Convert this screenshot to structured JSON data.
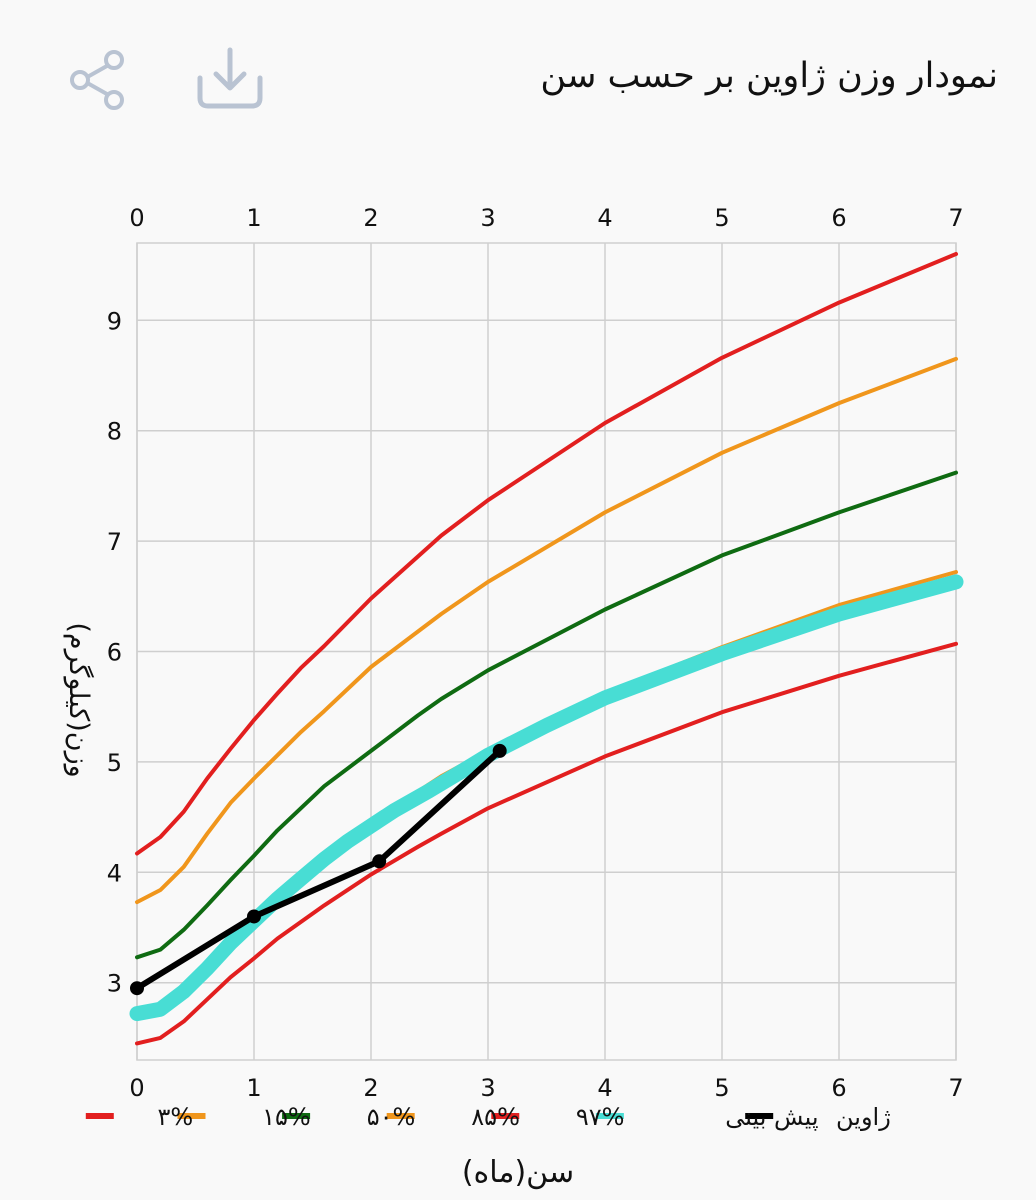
{
  "header": {
    "title": "نمودار وزن ژاوین بر حسب سن",
    "share_icon": "share-icon",
    "download_icon": "download-icon"
  },
  "colors": {
    "background": "#f9f9f9",
    "grid": "#cfcfcf",
    "axis_text": "#111111",
    "icon": "#b9c3d2"
  },
  "chart_data": {
    "type": "line",
    "xlabel": "سن(ماه)",
    "ylabel": "وزن(کیلوگرم)",
    "xlim": [
      0,
      7
    ],
    "ylim": [
      2.3,
      9.7
    ],
    "x_ticks": [
      "0",
      "1",
      "2",
      "3",
      "4",
      "5",
      "6",
      "7"
    ],
    "y_ticks": [
      "3",
      "4",
      "5",
      "6",
      "7",
      "8",
      "9"
    ],
    "x_tick_values": [
      0,
      1,
      2,
      3,
      4,
      5,
      6,
      7
    ],
    "y_tick_values": [
      3,
      4,
      5,
      6,
      7,
      8,
      9
    ],
    "grid": true,
    "x_axis_top_labels": true,
    "legend_position": "bottom",
    "x": [
      0,
      0.2,
      0.4,
      0.6,
      0.8,
      1.0,
      1.2,
      1.4,
      1.6,
      2.0,
      2.4,
      2.6,
      3.0,
      4.0,
      5.0,
      6.0,
      7.0
    ],
    "series": [
      {
        "name": "۳%",
        "color": "#e21f1f",
        "width": 4,
        "values": [
          2.45,
          2.5,
          2.65,
          2.85,
          3.05,
          3.22,
          3.4,
          3.55,
          3.7,
          3.98,
          4.23,
          4.35,
          4.58,
          5.05,
          5.45,
          5.78,
          6.07
        ]
      },
      {
        "name": "۱۵%",
        "color": "#f0961c",
        "width": 4,
        "values": [
          2.73,
          2.78,
          2.95,
          3.18,
          3.4,
          3.58,
          3.75,
          3.95,
          4.12,
          4.45,
          4.73,
          4.87,
          5.1,
          5.62,
          6.04,
          6.42,
          6.72
        ]
      },
      {
        "name": "۵۰%",
        "color": "#0f6b12",
        "width": 4,
        "values": [
          3.23,
          3.3,
          3.48,
          3.7,
          3.93,
          4.15,
          4.38,
          4.58,
          4.78,
          5.1,
          5.42,
          5.57,
          5.83,
          6.38,
          6.87,
          7.26,
          7.62
        ]
      },
      {
        "name": "۸۵%",
        "color": "#f0961c",
        "width": 4,
        "values": [
          3.73,
          3.84,
          4.05,
          4.35,
          4.63,
          4.85,
          5.06,
          5.27,
          5.46,
          5.86,
          6.18,
          6.34,
          6.63,
          7.26,
          7.8,
          8.25,
          8.65
        ]
      },
      {
        "name": "۹۷%",
        "color": "#e21f1f",
        "width": 4,
        "values": [
          4.17,
          4.32,
          4.55,
          4.85,
          5.12,
          5.38,
          5.62,
          5.85,
          6.05,
          6.48,
          6.86,
          7.05,
          7.37,
          8.07,
          8.66,
          9.16,
          9.6
        ]
      },
      {
        "name": "پیش بینی",
        "color": "#48ddd4",
        "width": 15,
        "x": [
          0,
          0.2,
          0.4,
          0.6,
          0.8,
          1.0,
          1.2,
          1.4,
          1.6,
          1.8,
          2.0,
          2.2,
          2.5,
          2.8,
          3.0,
          3.5,
          4.0,
          5.0,
          6.0,
          7.0
        ],
        "values": [
          2.72,
          2.76,
          2.92,
          3.13,
          3.36,
          3.56,
          3.76,
          3.94,
          4.12,
          4.28,
          4.42,
          4.56,
          4.74,
          4.93,
          5.06,
          5.33,
          5.58,
          5.98,
          6.34,
          6.63
        ]
      },
      {
        "name": "ژاوین",
        "color": "#000000",
        "width": 6,
        "markers": true,
        "x": [
          0,
          1.0,
          2.07,
          3.1
        ],
        "values": [
          2.95,
          3.6,
          4.1,
          5.1
        ]
      }
    ]
  }
}
